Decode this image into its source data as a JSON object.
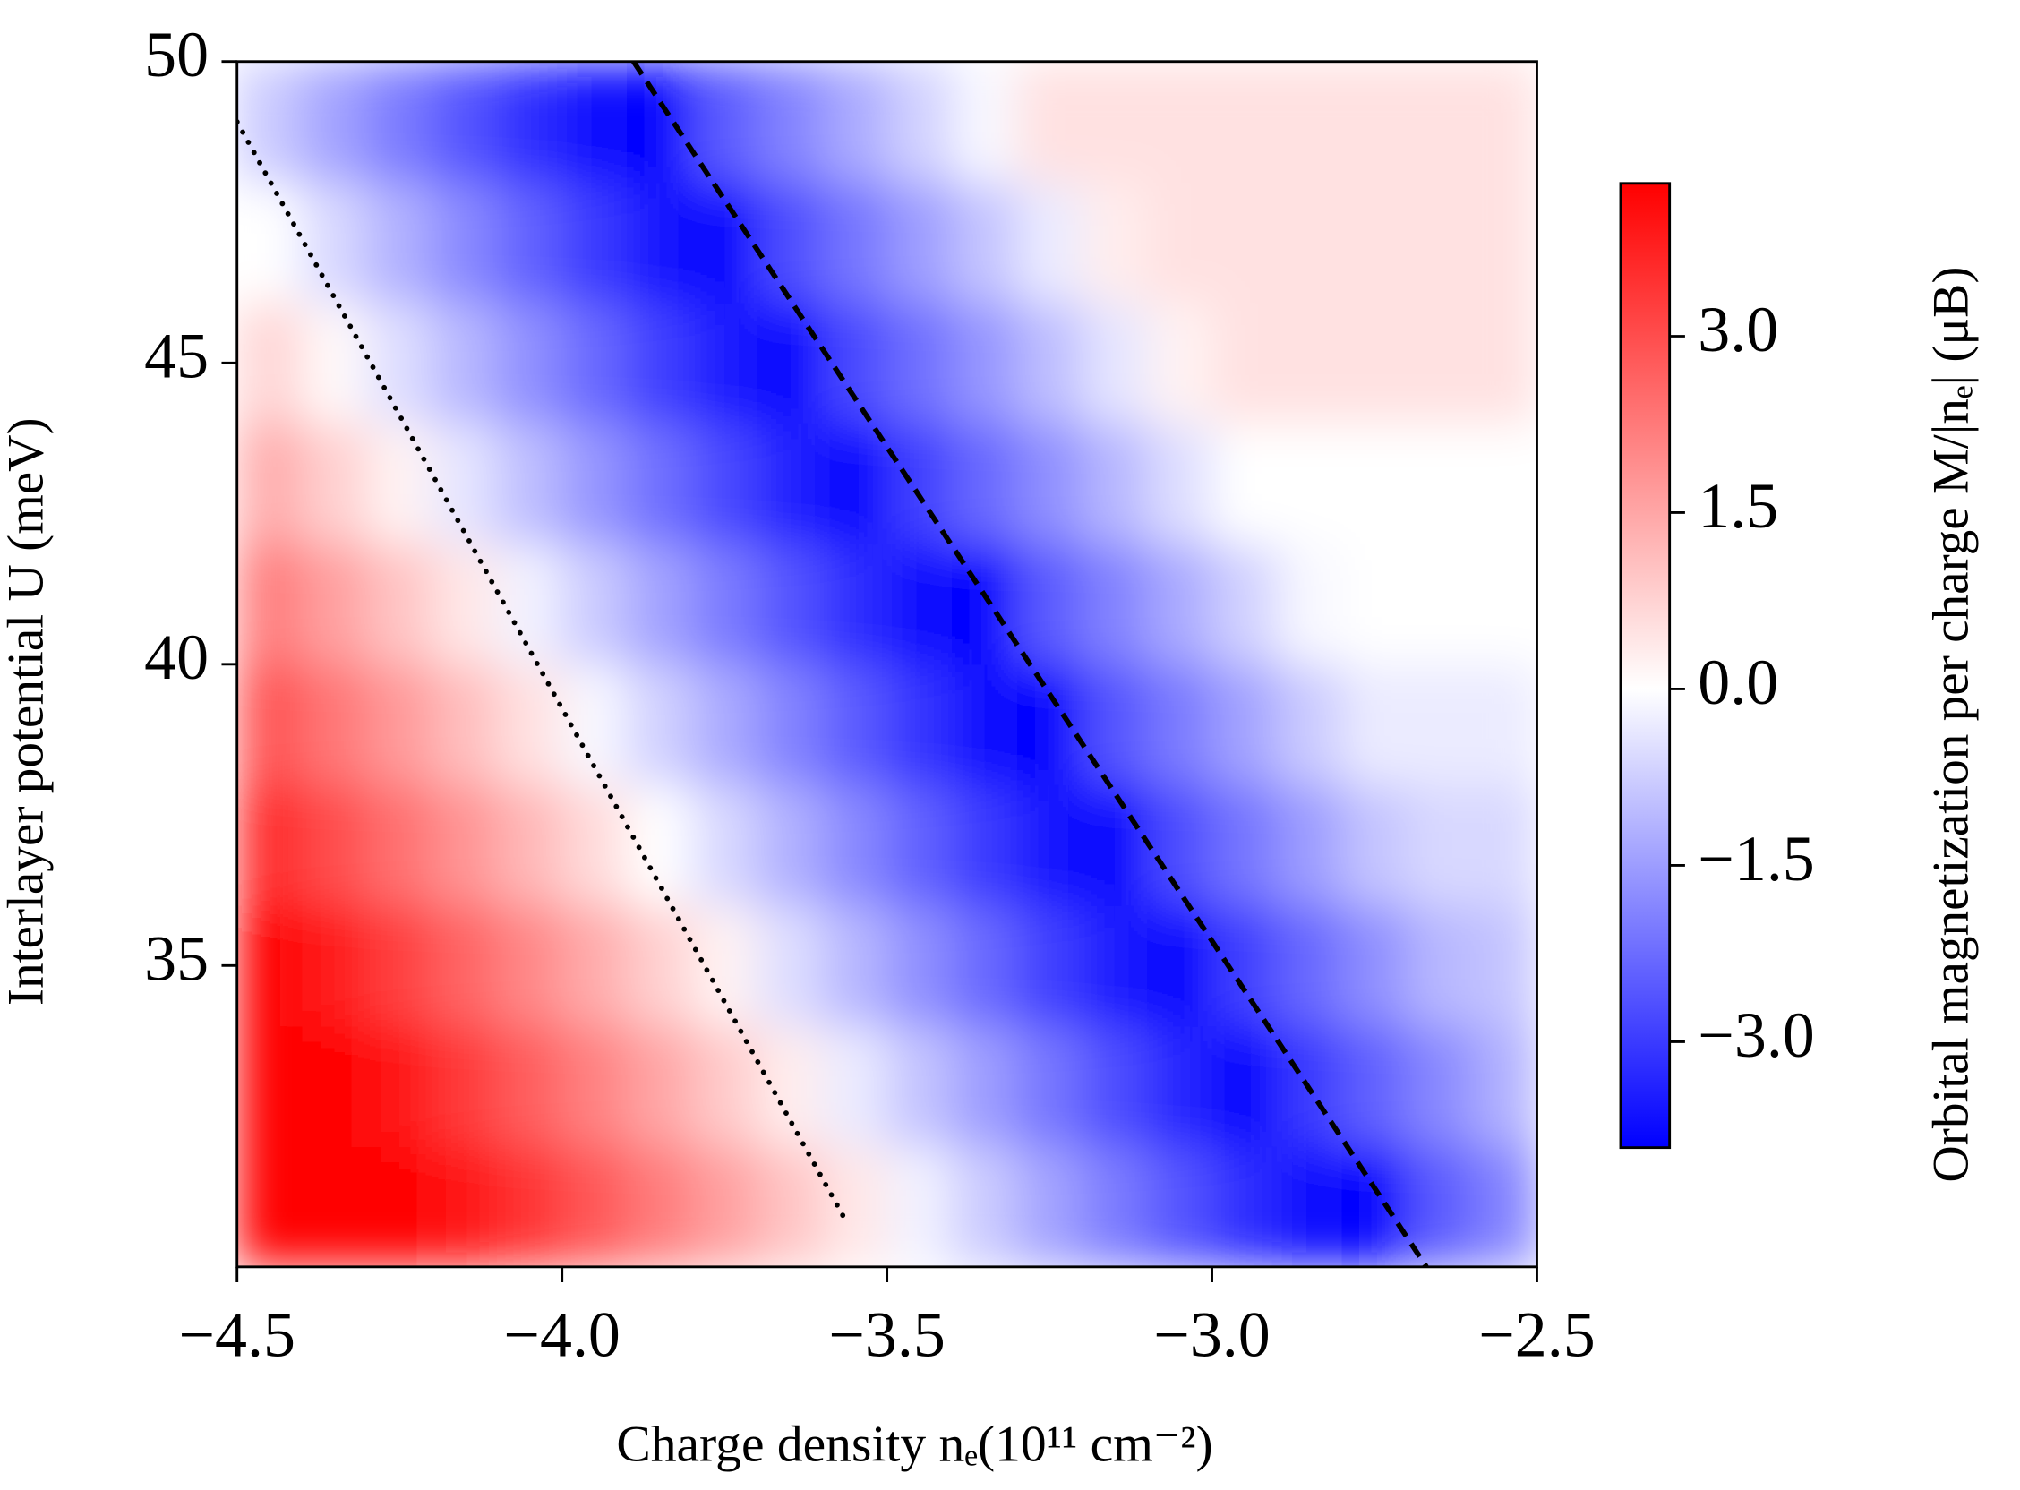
{
  "chart_data": {
    "type": "heatmap",
    "x_label": "Charge density nₑ(10¹¹ cm⁻²)",
    "y_label": "Interlayer potential U (meV)",
    "xlim": [
      -4.5,
      -2.5
    ],
    "xticks": [
      {
        "value": -4.5,
        "label": "−4.5"
      },
      {
        "value": -4.0,
        "label": "−4.0"
      },
      {
        "value": -3.5,
        "label": "−3.5"
      },
      {
        "value": -3.0,
        "label": "−3.0"
      },
      {
        "value": -2.5,
        "label": "−2.5"
      }
    ],
    "ylim": [
      30,
      50
    ],
    "yticks": [
      35,
      40,
      45,
      50
    ],
    "x": [
      -4.45,
      -4.35,
      -4.25,
      -4.15,
      -4.05,
      -3.95,
      -3.85,
      -3.75,
      -3.65,
      -3.55,
      -3.45,
      -3.35,
      -3.25,
      -3.15,
      -3.05,
      -2.95,
      -2.85,
      -2.75,
      -2.65,
      -2.55
    ],
    "y": [
      31,
      33,
      35,
      37,
      39,
      41,
      43,
      45,
      47,
      49
    ],
    "z": [
      [
        4.2,
        4.2,
        4.2,
        4.0,
        3.4,
        2.8,
        2.2,
        1.6,
        1.0,
        0.4,
        -0.2,
        -0.8,
        -1.4,
        -2.0,
        -2.6,
        -3.2,
        -3.8,
        -3.9,
        -2.5,
        -1.9
      ],
      [
        4.2,
        4.2,
        3.9,
        3.3,
        2.7,
        2.1,
        1.5,
        0.9,
        0.3,
        -0.3,
        -0.9,
        -1.5,
        -2.1,
        -2.7,
        -3.3,
        -3.9,
        -3.0,
        -2.4,
        -1.8,
        -1.2
      ],
      [
        4.2,
        3.8,
        3.2,
        2.6,
        2.0,
        1.4,
        0.8,
        0.2,
        -0.5,
        -1.1,
        -1.7,
        -2.3,
        -2.9,
        -3.5,
        -3.9,
        -2.9,
        -2.3,
        -1.7,
        -1.1,
        -0.9
      ],
      [
        3.6,
        3.0,
        2.4,
        1.8,
        1.2,
        0.6,
        0.0,
        -0.6,
        -1.2,
        -1.8,
        -2.4,
        -3.0,
        -3.6,
        -3.9,
        -2.7,
        -2.1,
        -1.5,
        -0.9,
        -0.6,
        -0.6
      ],
      [
        2.9,
        2.3,
        1.7,
        1.1,
        0.5,
        -0.1,
        -0.7,
        -1.3,
        -1.9,
        -2.5,
        -3.1,
        -3.7,
        -3.9,
        -2.6,
        -2.0,
        -1.4,
        -0.8,
        -0.3,
        -0.3,
        -0.3
      ],
      [
        2.2,
        1.6,
        1.0,
        0.4,
        -0.2,
        -0.8,
        -1.4,
        -2.0,
        -2.6,
        -3.2,
        -3.8,
        -3.9,
        -2.5,
        -1.9,
        -1.3,
        -0.7,
        -0.1,
        0.0,
        0.0,
        0.0
      ],
      [
        1.4,
        0.8,
        0.2,
        -0.4,
        -1.0,
        -1.6,
        -2.2,
        -2.8,
        -3.4,
        -3.9,
        -2.9,
        -2.3,
        -1.7,
        -1.1,
        -0.5,
        0.0,
        0.0,
        0.0,
        0.0,
        0.0
      ],
      [
        0.7,
        0.1,
        -0.5,
        -1.1,
        -1.7,
        -2.3,
        -2.9,
        -3.5,
        -3.9,
        -2.8,
        -2.2,
        -1.6,
        -1.0,
        -0.4,
        0.2,
        0.5,
        0.5,
        0.5,
        0.5,
        0.5
      ],
      [
        0.0,
        -0.6,
        -1.2,
        -1.8,
        -2.4,
        -3.0,
        -3.6,
        -3.9,
        -2.7,
        -2.1,
        -1.5,
        -0.9,
        -0.3,
        0.3,
        0.5,
        0.5,
        0.5,
        0.5,
        0.5,
        0.5
      ],
      [
        -0.8,
        -1.4,
        -2.0,
        -2.6,
        -3.2,
        -3.8,
        -3.9,
        -2.5,
        -1.9,
        -1.3,
        -0.7,
        -0.1,
        0.5,
        0.5,
        0.5,
        0.5,
        0.5,
        0.5,
        0.5,
        0.5
      ]
    ],
    "lines": [
      {
        "style": "dotted",
        "color": "#000000",
        "x": [
          -4.5,
          -3.56
        ],
        "y": [
          49,
          30.7
        ]
      },
      {
        "style": "dashed",
        "color": "#000000",
        "x": [
          -3.89,
          -2.67
        ],
        "y": [
          50,
          30
        ]
      }
    ],
    "colorbar": {
      "label": "Orbital magnetization per charge M/|nₑ| (μB)",
      "lim": [
        -3.9,
        4.3
      ],
      "norm_center": 0,
      "colors": [
        "#0000ff",
        "#ffffff",
        "#ff0000"
      ],
      "ticks": [
        {
          "value": -3.0,
          "label": "−3.0"
        },
        {
          "value": -1.5,
          "label": "−1.5"
        },
        {
          "value": 0,
          "label": "0.0"
        },
        1.5,
        {
          "value": 3.0,
          "label": "3.0"
        }
      ]
    }
  }
}
